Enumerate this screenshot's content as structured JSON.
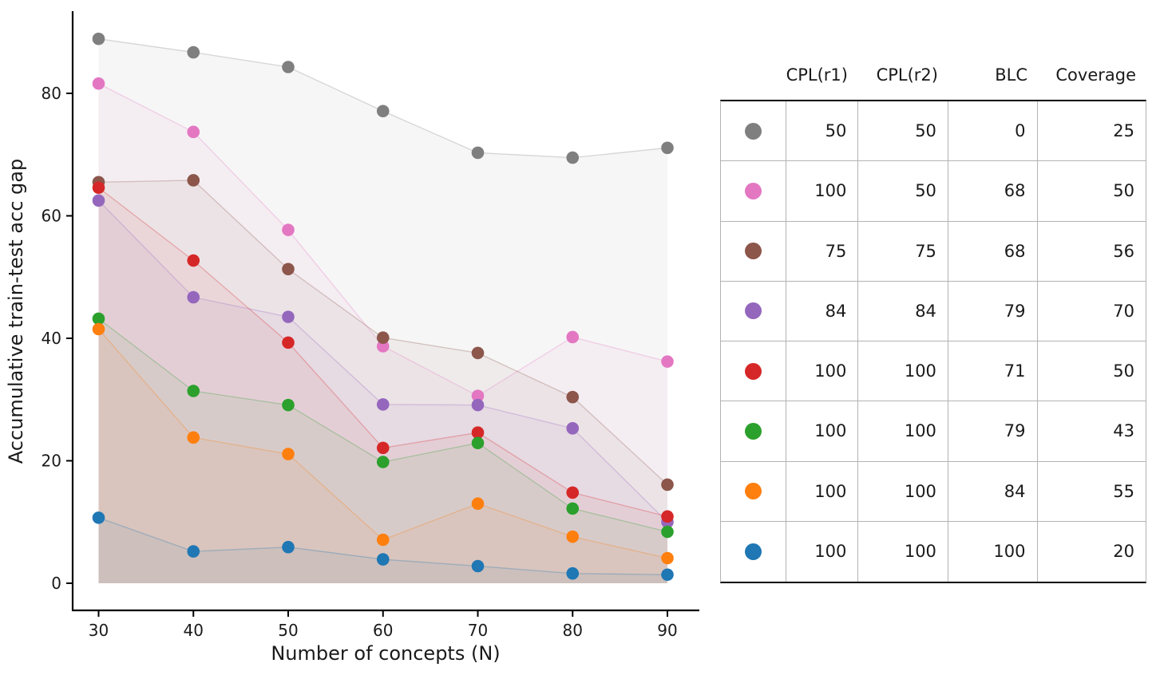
{
  "chart_data": {
    "type": "scatter",
    "title": "",
    "xlabel": "Number of concepts (N)",
    "ylabel": "Accumulative train-test acc gap",
    "x": [
      30,
      40,
      50,
      60,
      70,
      80,
      90
    ],
    "xtick_labels": [
      "30",
      "40",
      "50",
      "60",
      "70",
      "80",
      "90"
    ],
    "ytick_values": [
      0,
      20,
      40,
      60,
      80
    ],
    "ytick_labels": [
      "0",
      "20",
      "40",
      "60",
      "80"
    ],
    "xlim": [
      27.2,
      93.4
    ],
    "ylim": [
      -4.5,
      93.5
    ],
    "grid": false,
    "fill_to_zero": true,
    "legend_position": "right-table",
    "series": [
      {
        "name": "gray",
        "color": "#7f7f7f",
        "values": [
          88.9,
          86.7,
          84.3,
          77.1,
          70.3,
          69.5,
          71.1
        ]
      },
      {
        "name": "pink",
        "color": "#e377c2",
        "values": [
          81.6,
          73.7,
          57.7,
          38.7,
          30.6,
          40.2,
          36.2
        ]
      },
      {
        "name": "brown",
        "color": "#8c564b",
        "values": [
          65.5,
          65.8,
          51.3,
          40.1,
          37.6,
          30.4,
          16.1
        ]
      },
      {
        "name": "purple",
        "color": "#9467bd",
        "values": [
          62.5,
          46.7,
          43.5,
          29.2,
          29.1,
          25.3,
          10.0
        ]
      },
      {
        "name": "red",
        "color": "#d62728",
        "values": [
          64.6,
          52.7,
          39.3,
          22.1,
          24.6,
          14.8,
          10.9
        ]
      },
      {
        "name": "green",
        "color": "#2ca02c",
        "values": [
          43.2,
          31.4,
          29.1,
          19.8,
          22.9,
          12.2,
          8.4
        ]
      },
      {
        "name": "orange",
        "color": "#ff7f0e",
        "values": [
          41.5,
          23.8,
          21.1,
          7.1,
          13.0,
          7.6,
          4.1
        ]
      },
      {
        "name": "blue",
        "color": "#1f77b4",
        "values": [
          10.7,
          5.2,
          5.9,
          3.9,
          2.8,
          1.6,
          1.4
        ]
      }
    ]
  },
  "legend_table": {
    "headers": [
      "CPL(r1)",
      "CPL(r2)",
      "BLC",
      "Coverage"
    ],
    "rows": [
      {
        "dot": "gray",
        "dot_color": "#7f7f7f",
        "values": [
          "50",
          "50",
          "0",
          "25"
        ]
      },
      {
        "dot": "pink",
        "dot_color": "#e377c2",
        "values": [
          "100",
          "50",
          "68",
          "50"
        ]
      },
      {
        "dot": "brown",
        "dot_color": "#8c564b",
        "values": [
          "75",
          "75",
          "68",
          "56"
        ]
      },
      {
        "dot": "purple",
        "dot_color": "#9467bd",
        "values": [
          "84",
          "84",
          "79",
          "70"
        ]
      },
      {
        "dot": "red",
        "dot_color": "#d62728",
        "values": [
          "100",
          "100",
          "71",
          "50"
        ]
      },
      {
        "dot": "green",
        "dot_color": "#2ca02c",
        "values": [
          "100",
          "100",
          "79",
          "43"
        ]
      },
      {
        "dot": "orange",
        "dot_color": "#ff7f0e",
        "values": [
          "100",
          "100",
          "84",
          "55"
        ]
      },
      {
        "dot": "blue",
        "dot_color": "#1f77b4",
        "values": [
          "100",
          "100",
          "100",
          "20"
        ]
      }
    ]
  }
}
